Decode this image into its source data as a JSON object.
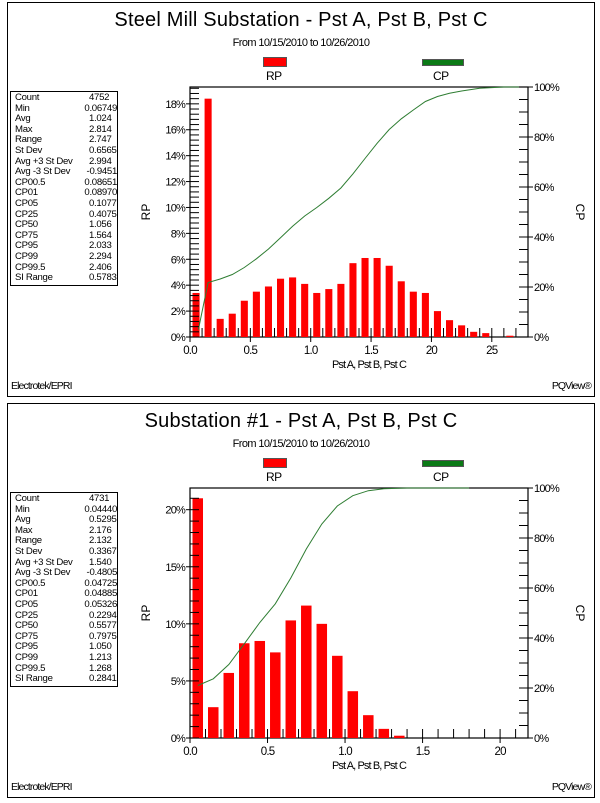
{
  "chart_data": [
    {
      "type": "bar",
      "title": "Steel Mill Substation - Pst A, Pst B, Pst C",
      "subtitle": "From 10/15/2010 to 10/26/2010",
      "xlabel": "Pst A, Pst B, Pst C",
      "ylabel": "RP",
      "y2label": "CP",
      "legend": [
        {
          "name": "RP",
          "color": "#ff0000"
        },
        {
          "name": "CP",
          "color": "#0b7a16"
        }
      ],
      "legend_position": "top",
      "xlim": [
        0,
        2.8
      ],
      "ylim": [
        0,
        19.3
      ],
      "y2lim": [
        0,
        100
      ],
      "xticks": [
        0.0,
        0.5,
        1.0,
        1.5,
        2.0,
        2.5
      ],
      "xtick_labels": [
        "0.0",
        "0.5",
        "1.0",
        "1.5",
        "20",
        "25"
      ],
      "yticks": [
        0,
        2,
        4,
        6,
        8,
        10,
        12,
        14,
        16,
        18
      ],
      "ytick_labels": [
        "0%",
        "2%",
        "4%",
        "6%",
        "8%",
        "10%",
        "12%",
        "14%",
        "16%",
        "18%"
      ],
      "y2ticks": [
        0,
        20,
        40,
        60,
        80,
        100
      ],
      "y2tick_labels": [
        "0%",
        "20%",
        "40%",
        "60%",
        "80%",
        "100%"
      ],
      "bin_width": 0.1,
      "series": [
        {
          "name": "RP",
          "type": "bar",
          "x": [
            0.05,
            0.15,
            0.25,
            0.35,
            0.45,
            0.55,
            0.65,
            0.75,
            0.85,
            0.95,
            1.05,
            1.15,
            1.25,
            1.35,
            1.45,
            1.55,
            1.65,
            1.75,
            1.85,
            1.95,
            2.05,
            2.15,
            2.25,
            2.35,
            2.45,
            2.55,
            2.65
          ],
          "values": [
            3.4,
            18.4,
            1.4,
            1.8,
            2.8,
            3.5,
            3.9,
            4.5,
            4.6,
            4.1,
            3.4,
            3.7,
            4.1,
            5.7,
            6.1,
            6.1,
            5.5,
            4.3,
            3.5,
            3.4,
            2.0,
            1.3,
            0.9,
            0.4,
            0.3,
            0.0,
            0.1
          ]
        },
        {
          "name": "CP",
          "type": "line",
          "x": [
            0.07,
            0.15,
            0.25,
            0.35,
            0.45,
            0.55,
            0.65,
            0.75,
            0.85,
            0.95,
            1.05,
            1.15,
            1.25,
            1.35,
            1.45,
            1.55,
            1.65,
            1.75,
            1.85,
            1.95,
            2.05,
            2.15,
            2.25,
            2.4,
            2.6,
            2.8
          ],
          "values": [
            3,
            21.8,
            23.2,
            25.0,
            27.8,
            31.3,
            35.2,
            39.7,
            44.3,
            48.4,
            51.8,
            55.5,
            59.6,
            65.3,
            71.4,
            77.5,
            83.0,
            87.3,
            90.8,
            94.2,
            96.2,
            97.5,
            98.4,
            99.5,
            100,
            100
          ]
        }
      ],
      "stats": [
        [
          "Count",
          "4752"
        ],
        [
          "Min",
          "0.06749"
        ],
        [
          "Avg",
          "1.024"
        ],
        [
          "Max",
          "2.814"
        ],
        [
          "Range",
          "2.747"
        ],
        [
          "St Dev",
          "0.6565"
        ],
        [
          "Avg +3 St Dev",
          "2.994"
        ],
        [
          "Avg -3 St Dev",
          "-0.9451"
        ],
        [
          "CP00.5",
          "0.08651"
        ],
        [
          "CP01",
          "0.08970"
        ],
        [
          "CP05",
          "0.1077"
        ],
        [
          "CP25",
          "0.4075"
        ],
        [
          "CP50",
          "1.056"
        ],
        [
          "CP75",
          "1.564"
        ],
        [
          "CP95",
          "2.033"
        ],
        [
          "CP99",
          "2.294"
        ],
        [
          "CP99.5",
          "2.406"
        ],
        [
          "SI Range",
          "0.5783"
        ]
      ],
      "footer_left": "Electrotek/EPRI",
      "footer_right": "PQView®"
    },
    {
      "type": "bar",
      "title": "Substation #1 - Pst A, Pst B, Pst C",
      "subtitle": "From 10/15/2010 to 10/26/2010",
      "xlabel": "Pst A, Pst B, Pst C",
      "ylabel": "RP",
      "y2label": "CP",
      "legend": [
        {
          "name": "RP",
          "color": "#ff0000"
        },
        {
          "name": "CP",
          "color": "#0b7a16"
        }
      ],
      "legend_position": "top",
      "xlim": [
        0,
        2.18
      ],
      "ylim": [
        0,
        21.9
      ],
      "y2lim": [
        0,
        100
      ],
      "xticks": [
        0.0,
        0.5,
        1.0,
        1.5,
        2.0
      ],
      "xtick_labels": [
        "0.0",
        "0.5",
        "1.0",
        "1.5",
        "20"
      ],
      "yticks": [
        0,
        5,
        10,
        15,
        20
      ],
      "ytick_labels": [
        "0%",
        "5%",
        "10%",
        "15%",
        "20%"
      ],
      "y2ticks": [
        0,
        20,
        40,
        60,
        80,
        100
      ],
      "y2tick_labels": [
        "0%",
        "20%",
        "40%",
        "60%",
        "80%",
        "100%"
      ],
      "bin_width": 0.1,
      "series": [
        {
          "name": "RP",
          "type": "bar",
          "x": [
            0.05,
            0.15,
            0.25,
            0.35,
            0.45,
            0.55,
            0.65,
            0.75,
            0.85,
            0.95,
            1.05,
            1.15,
            1.25,
            1.35
          ],
          "values": [
            21.0,
            2.7,
            5.7,
            8.3,
            8.5,
            7.5,
            10.3,
            11.6,
            10.0,
            7.2,
            4.1,
            2.0,
            0.8,
            0.2
          ]
        },
        {
          "name": "CP",
          "type": "line",
          "x": [
            0.05,
            0.15,
            0.25,
            0.35,
            0.45,
            0.55,
            0.65,
            0.75,
            0.85,
            0.95,
            1.05,
            1.15,
            1.25,
            1.4,
            1.6,
            1.8
          ],
          "values": [
            21.0,
            23.7,
            29.4,
            37.7,
            46.2,
            53.7,
            64.0,
            75.6,
            85.6,
            92.8,
            96.9,
            98.9,
            99.7,
            100,
            100,
            100
          ]
        }
      ],
      "stats": [
        [
          "Count",
          "4731"
        ],
        [
          "Min",
          "0.04440"
        ],
        [
          "Avg",
          "0.5295"
        ],
        [
          "Max",
          "2.176"
        ],
        [
          "Range",
          "2.132"
        ],
        [
          "St Dev",
          "0.3367"
        ],
        [
          "Avg +3 St Dev",
          "1.540"
        ],
        [
          "Avg -3 St Dev",
          "-0.4805"
        ],
        [
          "CP00.5",
          "0.04725"
        ],
        [
          "CP01",
          "0.04885"
        ],
        [
          "CP05",
          "0.05326"
        ],
        [
          "CP25",
          "0.2294"
        ],
        [
          "CP50",
          "0.5577"
        ],
        [
          "CP75",
          "0.7975"
        ],
        [
          "CP95",
          "1.050"
        ],
        [
          "CP99",
          "1.213"
        ],
        [
          "CP99.5",
          "1.268"
        ],
        [
          "SI Range",
          "0.2841"
        ]
      ],
      "footer_left": "Electrotek/EPRI",
      "footer_right": "PQView®"
    }
  ]
}
